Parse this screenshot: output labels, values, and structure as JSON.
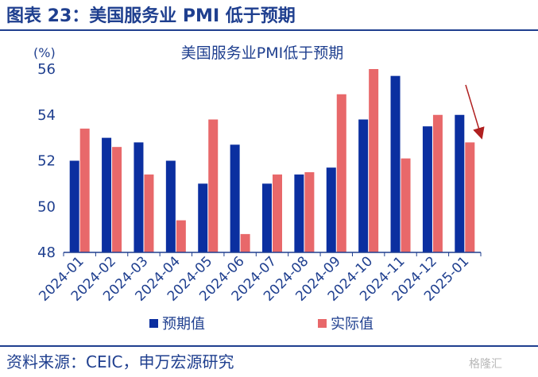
{
  "figure": {
    "title": "图表 23：美国服务业 PMI 低于预期",
    "source": "资料来源：CEIC，申万宏源研究",
    "watermark": "格隆汇"
  },
  "colors": {
    "forecast": "#0b2fa0",
    "actual": "#e8686a",
    "text": "#1f3f8f",
    "arrow": "#b02020"
  },
  "chart_data": {
    "type": "bar",
    "title": "美国服务业PMI低于预期",
    "ylabel": "(%)",
    "xlabel": "",
    "ylim": [
      48,
      56
    ],
    "yticks": [
      48,
      50,
      52,
      54,
      56
    ],
    "categories": [
      "2024-01",
      "2024-02",
      "2024-03",
      "2024-04",
      "2024-05",
      "2024-06",
      "2024-07",
      "2024-08",
      "2024-09",
      "2024-10",
      "2024-11",
      "2024-12",
      "2025-01"
    ],
    "series": [
      {
        "name": "预期值",
        "values": [
          52.0,
          53.0,
          52.8,
          52.0,
          51.0,
          52.7,
          51.0,
          51.4,
          51.7,
          53.8,
          55.7,
          53.5,
          54.0
        ]
      },
      {
        "name": "实际值",
        "values": [
          53.4,
          52.6,
          51.4,
          49.4,
          53.8,
          48.8,
          51.4,
          51.5,
          54.9,
          56.0,
          52.1,
          54.0,
          52.8
        ]
      }
    ],
    "legend_position": "bottom",
    "grid": false,
    "annotation": "arrow pointing to 2025-01 actual value"
  }
}
